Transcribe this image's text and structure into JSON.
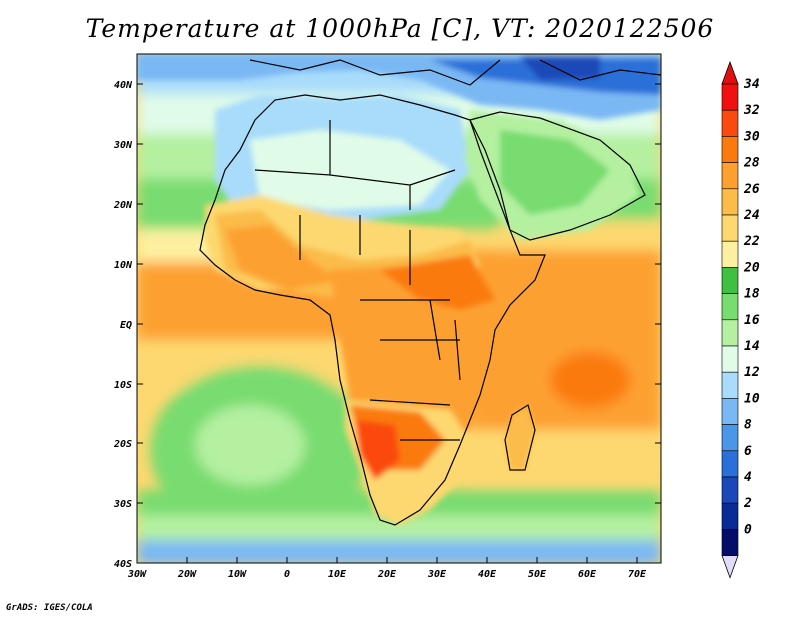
{
  "title": "Temperature at 1000hPa [C], VT: 2020122506",
  "footer": "GrADS: IGES/COLA",
  "lon_labels": [
    "30W",
    "20W",
    "10W",
    "0",
    "10E",
    "20E",
    "30E",
    "40E",
    "50E",
    "60E",
    "70E"
  ],
  "lat_labels": [
    "40N",
    "30N",
    "20N",
    "10N",
    "EQ",
    "10S",
    "20S",
    "30S",
    "40S"
  ],
  "colorbar": {
    "labels": [
      "34",
      "32",
      "30",
      "28",
      "26",
      "24",
      "22",
      "20",
      "18",
      "16",
      "14",
      "12",
      "10",
      "8",
      "6",
      "4",
      "2",
      "0"
    ],
    "colors": [
      "#f01010",
      "#fb4a10",
      "#fb7a10",
      "#fda030",
      "#fbbc4a",
      "#fdd870",
      "#fdf0a0",
      "#3fc040",
      "#78dc70",
      "#b4f0a0",
      "#e0fce8",
      "#a8dcfa",
      "#7ab8f4",
      "#4a96e8",
      "#2a70d8",
      "#1a48b8",
      "#0a2a96",
      "#040e6a"
    ],
    "arrow_top_color": "#e01010",
    "arrow_bottom_color": "#e0dcfa"
  },
  "palette": {
    "ocean_green": "#78dc70",
    "ocean_orange": "#fda030",
    "land_orange": "#fb7a10"
  }
}
